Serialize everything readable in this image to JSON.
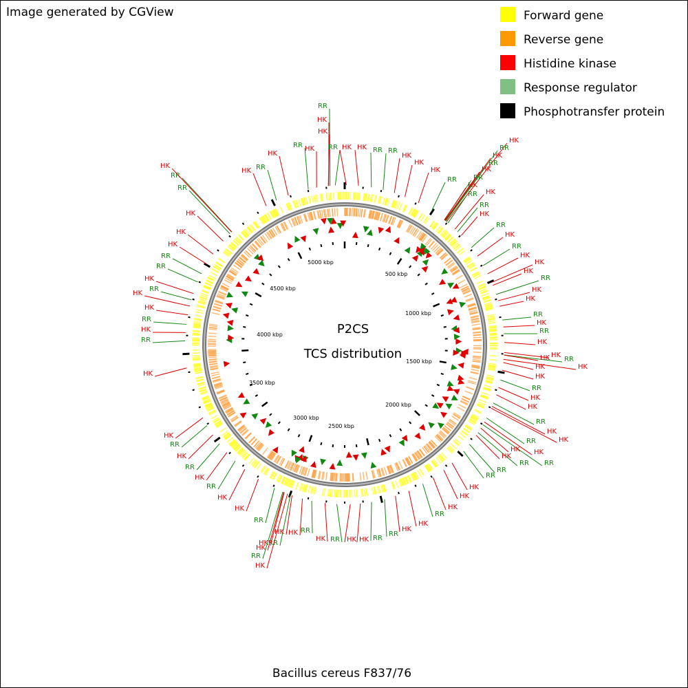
{
  "header": {
    "credit": "Image generated by CGView"
  },
  "legend": [
    "Forward gene",
    "Reverse gene",
    "Histidine kinase",
    "Response regulator",
    "Phosphotransfer protein"
  ],
  "center": {
    "title": "P2CS",
    "subtitle": "TCS distribution"
  },
  "scale_labels": [
    "500 kbp",
    "1000 kbp",
    "1500 kbp",
    "2000 kbp",
    "2500 kbp",
    "3000 kbp",
    "3500 kbp",
    "4000 kbp",
    "4500 kbp",
    "5000 kbp"
  ],
  "feature_labels": [
    "RR",
    "HK",
    "HK",
    "HK",
    "RR",
    "HK",
    "RR",
    "HK",
    "RR",
    "HK",
    "HK",
    "RR",
    "RR",
    "HK",
    "HK",
    "HK",
    "RR",
    "HK",
    "RR",
    "HK",
    "RR",
    "HK",
    "RR",
    "HK",
    "HK",
    "RR",
    "RR",
    "HK",
    "RR",
    "HK",
    "RR",
    "HK",
    "HK",
    "HK",
    "RR",
    "HK",
    "HK",
    "RR",
    "HK",
    "RR",
    "HK",
    "HK",
    "RR",
    "HK",
    "HK",
    "HK",
    "RR",
    "HK",
    "HK",
    "RR",
    "HK",
    "HK",
    "RR",
    "HK",
    "RR",
    "RR",
    "HK",
    "HK",
    "RR",
    "HK",
    "RR",
    "HK",
    "HK",
    "RR",
    "HK",
    "HK",
    "RR",
    "RR",
    "HK",
    "HK",
    "RR",
    "HK",
    "RR",
    "HK",
    "RR",
    "HK",
    "RR",
    "HK",
    "HK",
    "HK",
    "HK",
    "RR",
    "HK",
    "RR",
    "HK",
    "RR",
    "HK",
    "RR",
    "HK",
    "HK",
    "RR",
    "HK",
    "RR",
    "HK",
    "HK",
    "RR",
    "RR",
    "HK",
    "HK",
    "HK",
    "HK",
    "RR",
    "RR",
    "HK",
    "RR",
    "HK"
  ],
  "footer": "Bacillus cereus F837/76"
}
